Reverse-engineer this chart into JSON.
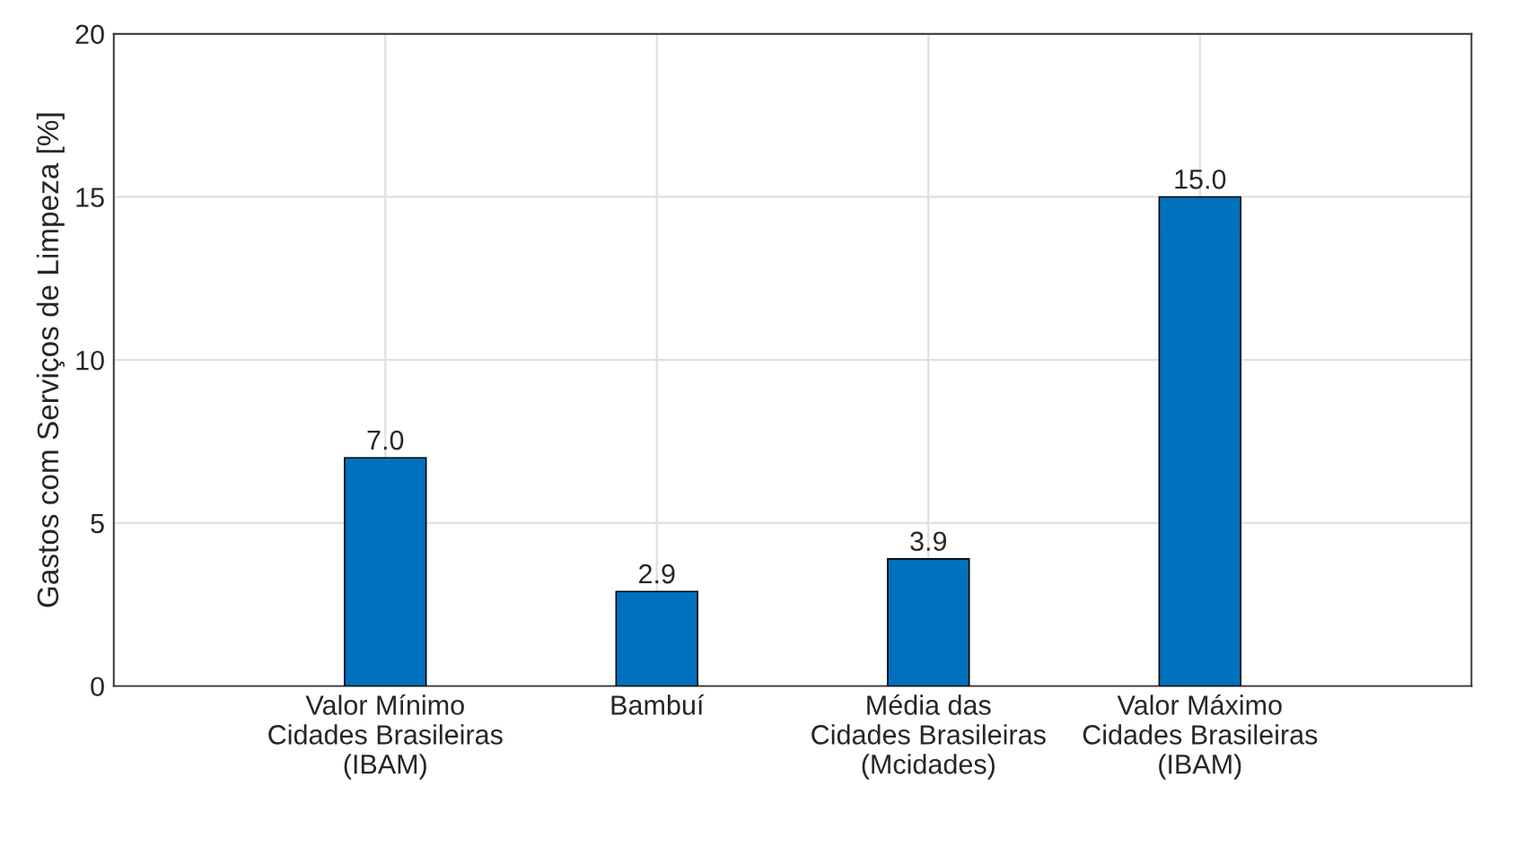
{
  "chart_data": {
    "type": "bar",
    "ylabel": "Gastos com Serviços de Limpeza [%]",
    "categories": [
      "Valor Mínimo\nCidades Brasileiras\n(IBAM)",
      "Bambuí",
      "Média das\nCidades Brasileiras\n(Mcidades)",
      "Valor Máximo\nCidades Brasileiras\n(IBAM)"
    ],
    "values": [
      7.0,
      2.9,
      3.9,
      15.0
    ],
    "value_labels": [
      "7.0",
      "2.9",
      "3.9",
      "15.0"
    ],
    "color": "#0072bd",
    "ylim": [
      0,
      20
    ],
    "yticks": [
      0,
      5,
      10,
      15,
      20
    ],
    "grid": true
  }
}
